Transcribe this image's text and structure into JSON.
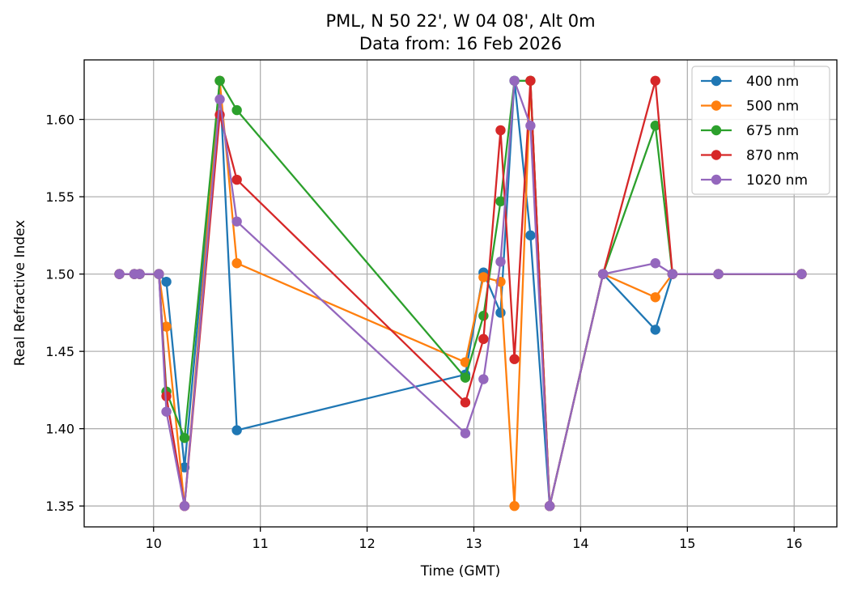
{
  "chart_data": {
    "type": "line",
    "title": "PML, N 50 22', W 04 08', Alt 0m",
    "subtitle": "Data from: 16 Feb 2026",
    "xlabel": "Time (GMT)",
    "ylabel": "Real Refractive Index",
    "xlim": [
      9.35,
      16.4
    ],
    "ylim": [
      1.3365,
      1.6385
    ],
    "xticks": [
      10,
      11,
      12,
      13,
      14,
      15,
      16
    ],
    "xtick_labels": [
      "10",
      "11",
      "12",
      "13",
      "14",
      "15",
      "16"
    ],
    "yticks": [
      1.35,
      1.4,
      1.45,
      1.5,
      1.55,
      1.6
    ],
    "ytick_labels": [
      "1.35",
      "1.40",
      "1.45",
      "1.50",
      "1.55",
      "1.60"
    ],
    "grid": true,
    "legend_position": "top-right",
    "x": [
      9.68,
      9.82,
      9.87,
      10.05,
      10.12,
      10.29,
      10.62,
      10.78,
      12.92,
      13.09,
      13.25,
      13.38,
      13.53,
      13.71,
      14.21,
      14.7,
      14.86,
      15.29,
      16.07
    ],
    "series": [
      {
        "name": "400 nm",
        "color": "#1f77b4",
        "values": [
          1.5,
          1.5,
          1.5,
          1.5,
          1.495,
          1.375,
          1.625,
          1.399,
          1.435,
          1.501,
          1.475,
          1.625,
          1.525,
          1.35,
          1.5,
          1.464,
          1.5,
          1.5,
          1.5
        ]
      },
      {
        "name": "500 nm",
        "color": "#ff7f0e",
        "values": [
          1.5,
          1.5,
          1.5,
          1.5,
          1.466,
          1.35,
          1.625,
          1.507,
          1.443,
          1.498,
          1.495,
          1.35,
          1.625,
          1.35,
          1.5,
          1.485,
          1.5,
          1.5,
          1.5
        ]
      },
      {
        "name": "675 nm",
        "color": "#2ca02c",
        "values": [
          1.5,
          1.5,
          1.5,
          1.5,
          1.424,
          1.394,
          1.625,
          1.606,
          1.433,
          1.473,
          1.547,
          1.625,
          1.625,
          1.35,
          1.5,
          1.596,
          1.5,
          1.5,
          1.5
        ]
      },
      {
        "name": "870 nm",
        "color": "#d62728",
        "values": [
          1.5,
          1.5,
          1.5,
          1.5,
          1.421,
          1.35,
          1.603,
          1.561,
          1.417,
          1.458,
          1.593,
          1.445,
          1.625,
          1.35,
          1.5,
          1.625,
          1.5,
          1.5,
          1.5
        ]
      },
      {
        "name": "1020 nm",
        "color": "#9467bd",
        "values": [
          1.5,
          1.5,
          1.5,
          1.5,
          1.411,
          1.35,
          1.613,
          1.534,
          1.397,
          1.432,
          1.508,
          1.625,
          1.596,
          1.35,
          1.5,
          1.507,
          1.5,
          1.5,
          1.5
        ]
      }
    ]
  }
}
